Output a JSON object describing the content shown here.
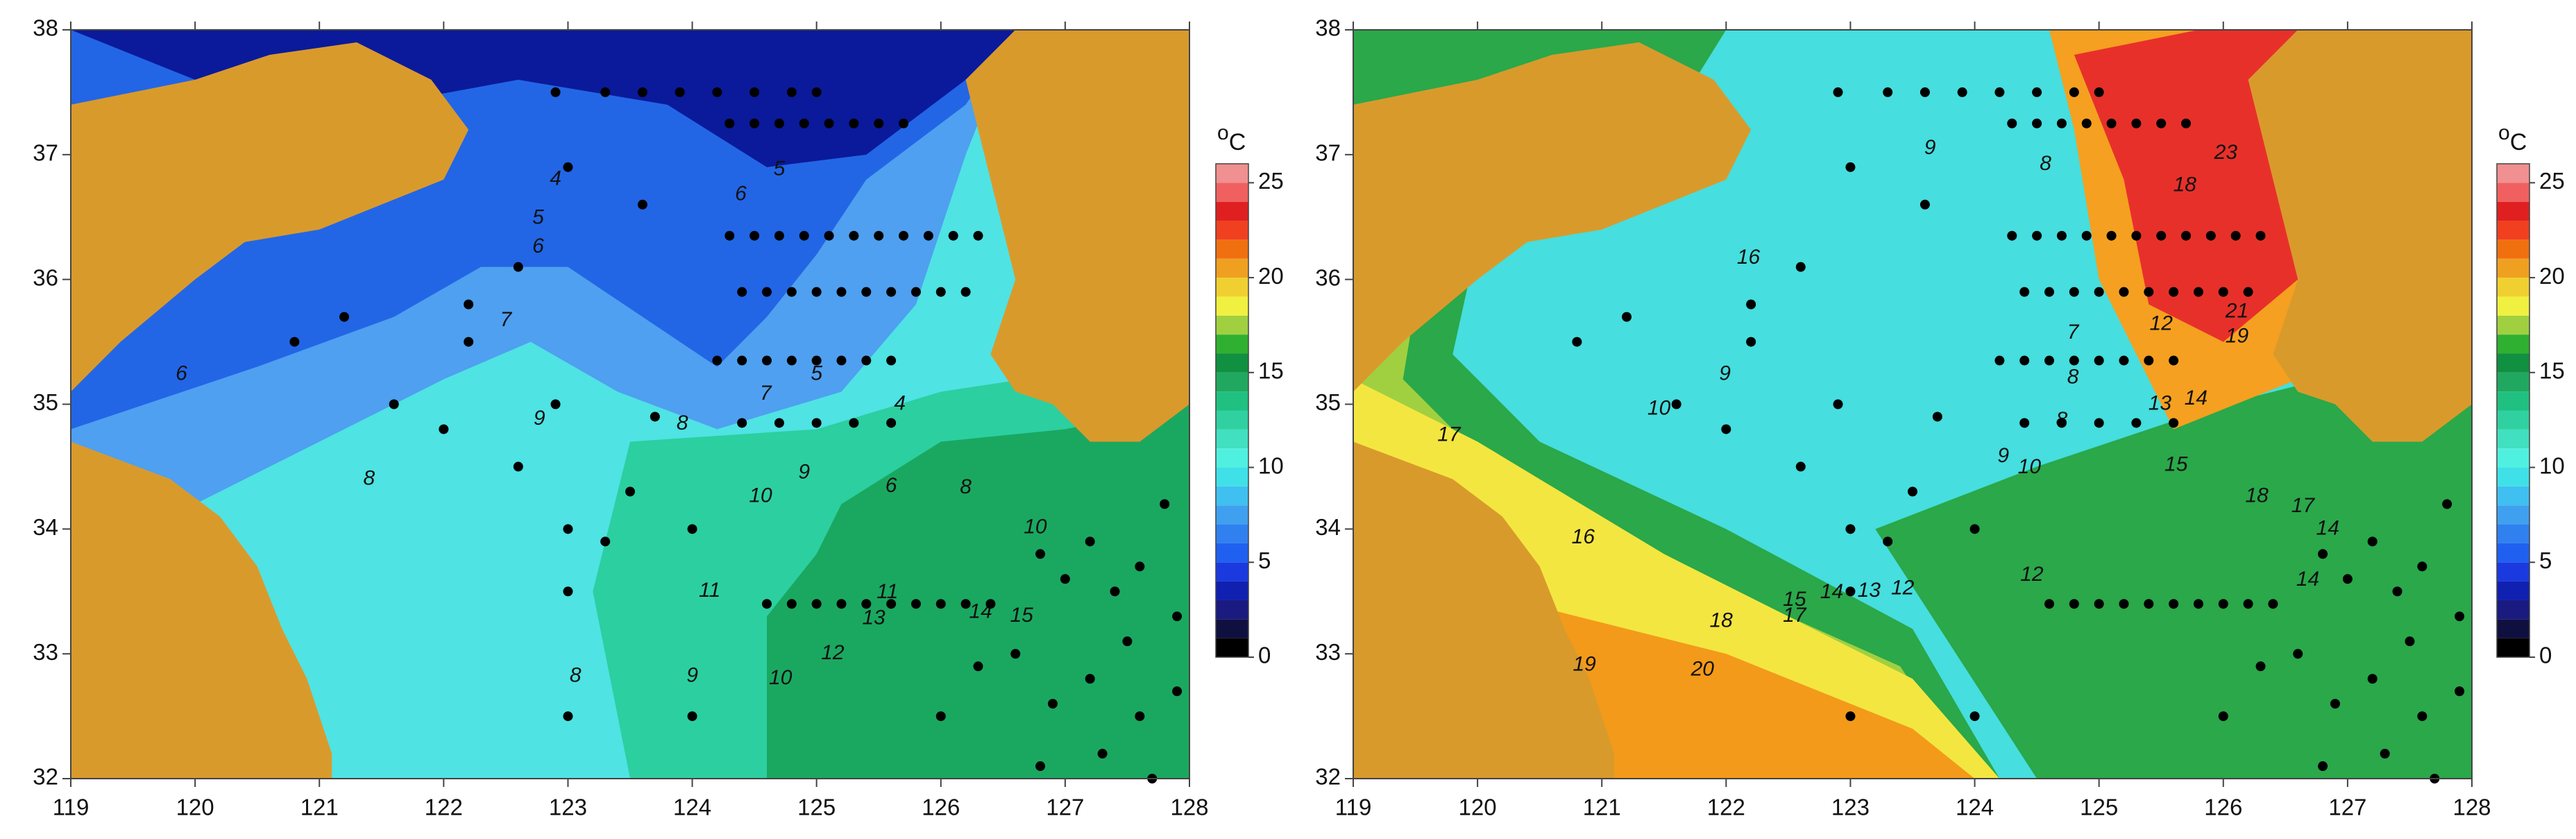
{
  "chart_data": [
    {
      "type": "contour",
      "xlim": [
        119,
        128
      ],
      "ylim": [
        32,
        38
      ],
      "xticks": [
        119,
        120,
        121,
        122,
        123,
        124,
        125,
        126,
        127,
        128
      ],
      "yticks": [
        32,
        33,
        34,
        35,
        36,
        37,
        38
      ],
      "colorbar": {
        "lim": [
          0,
          26
        ],
        "ticks": [
          0,
          5,
          10,
          15,
          20,
          25
        ],
        "unit_sup": "o",
        "unit": "C",
        "colormap": [
          "#000000",
          "#101040",
          "#1a1a80",
          "#1020b0",
          "#1a3ae0",
          "#2060f0",
          "#3080f0",
          "#40a0f0",
          "#40c0f0",
          "#40e0e8",
          "#50f0e0",
          "#40e0c0",
          "#30d0a0",
          "#20c080",
          "#20a860",
          "#109040",
          "#30b030",
          "#a0d040",
          "#f0f040",
          "#f0d030",
          "#f0a020",
          "#f07010",
          "#f04020",
          "#e02020",
          "#f06060",
          "#f09090"
        ]
      },
      "contour_labels": [
        {
          "value": 6,
          "lon": 119.89,
          "lat": 35.24
        },
        {
          "value": 8,
          "lon": 121.4,
          "lat": 34.4
        },
        {
          "value": 7,
          "lon": 122.5,
          "lat": 35.67
        },
        {
          "value": 6,
          "lon": 122.76,
          "lat": 36.26
        },
        {
          "value": 5,
          "lon": 122.76,
          "lat": 36.49
        },
        {
          "value": 4,
          "lon": 122.9,
          "lat": 36.8
        },
        {
          "value": 9,
          "lon": 122.77,
          "lat": 34.88
        },
        {
          "value": 8,
          "lon": 123.06,
          "lat": 32.82
        },
        {
          "value": 8,
          "lon": 123.92,
          "lat": 34.84
        },
        {
          "value": 7,
          "lon": 124.59,
          "lat": 35.08
        },
        {
          "value": 9,
          "lon": 124.0,
          "lat": 32.82
        },
        {
          "value": 10,
          "lon": 124.71,
          "lat": 32.8
        },
        {
          "value": 10,
          "lon": 124.55,
          "lat": 34.26
        },
        {
          "value": 11,
          "lon": 124.14,
          "lat": 33.5
        },
        {
          "value": 9,
          "lon": 124.9,
          "lat": 34.45
        },
        {
          "value": 6,
          "lon": 124.39,
          "lat": 36.68
        },
        {
          "value": 5,
          "lon": 124.7,
          "lat": 36.88
        },
        {
          "value": 5,
          "lon": 125.0,
          "lat": 35.24
        },
        {
          "value": 4,
          "lon": 125.67,
          "lat": 35.0
        },
        {
          "value": 6,
          "lon": 125.6,
          "lat": 34.34
        },
        {
          "value": 8,
          "lon": 126.2,
          "lat": 34.33
        },
        {
          "value": 10,
          "lon": 126.76,
          "lat": 34.01
        },
        {
          "value": 11,
          "lon": 125.57,
          "lat": 33.49
        },
        {
          "value": 13,
          "lon": 125.46,
          "lat": 33.28
        },
        {
          "value": 12,
          "lon": 125.13,
          "lat": 33.0
        },
        {
          "value": 14,
          "lon": 126.32,
          "lat": 33.33
        },
        {
          "value": 15,
          "lon": 126.65,
          "lat": 33.3
        }
      ]
    },
    {
      "type": "contour",
      "xlim": [
        119,
        128
      ],
      "ylim": [
        32,
        38
      ],
      "xticks": [
        119,
        120,
        121,
        122,
        123,
        124,
        125,
        126,
        127,
        128
      ],
      "yticks": [
        32,
        33,
        34,
        35,
        36,
        37,
        38
      ],
      "colorbar": {
        "lim": [
          0,
          26
        ],
        "ticks": [
          0,
          5,
          10,
          15,
          20,
          25
        ],
        "unit_sup": "o",
        "unit": "C",
        "colormap": [
          "#000000",
          "#101040",
          "#1a1a80",
          "#1020b0",
          "#1a3ae0",
          "#2060f0",
          "#3080f0",
          "#40a0f0",
          "#40c0f0",
          "#40e0e8",
          "#50f0e0",
          "#40e0c0",
          "#30d0a0",
          "#20c080",
          "#20a860",
          "#109040",
          "#30b030",
          "#a0d040",
          "#f0f040",
          "#f0d030",
          "#f0a020",
          "#f07010",
          "#f04020",
          "#e02020",
          "#f06060",
          "#f09090"
        ]
      },
      "contour_labels": [
        {
          "value": 17,
          "lon": 119.77,
          "lat": 34.75
        },
        {
          "value": 16,
          "lon": 120.85,
          "lat": 33.93
        },
        {
          "value": 15,
          "lon": 122.55,
          "lat": 33.43
        },
        {
          "value": 14,
          "lon": 122.85,
          "lat": 33.49
        },
        {
          "value": 13,
          "lon": 123.15,
          "lat": 33.5
        },
        {
          "value": 12,
          "lon": 123.42,
          "lat": 33.52
        },
        {
          "value": 17,
          "lon": 122.55,
          "lat": 33.3
        },
        {
          "value": 18,
          "lon": 121.96,
          "lat": 33.26
        },
        {
          "value": 19,
          "lon": 120.86,
          "lat": 32.91
        },
        {
          "value": 20,
          "lon": 121.81,
          "lat": 32.87
        },
        {
          "value": 10,
          "lon": 121.46,
          "lat": 34.96
        },
        {
          "value": 9,
          "lon": 121.99,
          "lat": 35.24
        },
        {
          "value": 16,
          "lon": 122.18,
          "lat": 36.17
        },
        {
          "value": 9,
          "lon": 124.23,
          "lat": 34.58
        },
        {
          "value": 10,
          "lon": 124.44,
          "lat": 34.49
        },
        {
          "value": 8,
          "lon": 124.7,
          "lat": 34.87
        },
        {
          "value": 8,
          "lon": 124.79,
          "lat": 35.21
        },
        {
          "value": 7,
          "lon": 124.79,
          "lat": 35.57
        },
        {
          "value": 8,
          "lon": 124.57,
          "lat": 36.92
        },
        {
          "value": 9,
          "lon": 123.64,
          "lat": 37.05
        },
        {
          "value": 12,
          "lon": 125.5,
          "lat": 35.64
        },
        {
          "value": 13,
          "lon": 125.49,
          "lat": 35.0
        },
        {
          "value": 14,
          "lon": 125.78,
          "lat": 35.04
        },
        {
          "value": 12,
          "lon": 124.46,
          "lat": 33.63
        },
        {
          "value": 18,
          "lon": 126.27,
          "lat": 34.26
        },
        {
          "value": 17,
          "lon": 126.64,
          "lat": 34.18
        },
        {
          "value": 14,
          "lon": 126.84,
          "lat": 34.0
        },
        {
          "value": 14,
          "lon": 126.68,
          "lat": 33.59
        },
        {
          "value": 23,
          "lon": 126.02,
          "lat": 37.01
        },
        {
          "value": 18,
          "lon": 125.69,
          "lat": 36.75
        },
        {
          "value": 21,
          "lon": 126.11,
          "lat": 35.74
        },
        {
          "value": 19,
          "lon": 126.11,
          "lat": 35.54
        },
        {
          "value": 15,
          "lon": 125.62,
          "lat": 34.51
        }
      ]
    }
  ],
  "stations": {
    "lon": [
      124.3,
      124.5,
      124.7,
      124.9,
      125.1,
      125.3,
      125.5,
      125.7,
      124.3,
      124.5,
      124.7,
      124.9,
      125.1,
      125.3,
      125.5,
      125.7,
      125.9,
      126.1,
      126.3,
      124.4,
      124.6,
      124.8,
      125.0,
      125.2,
      125.4,
      125.6,
      125.8,
      126.0,
      126.2,
      124.2,
      124.4,
      124.6,
      124.8,
      125.0,
      125.2,
      125.4,
      125.6,
      124.4,
      124.7,
      125.0,
      125.3,
      125.6,
      124.6,
      124.8,
      125.0,
      125.2,
      125.4,
      125.6,
      125.8,
      126.0,
      126.2,
      126.4,
      122.9,
      123.3,
      123.6,
      123.9,
      124.2,
      124.5,
      124.8,
      125.0,
      126.8,
      127.0,
      127.2,
      127.4,
      127.6,
      127.8,
      127.9,
      127.5,
      127.2,
      126.9,
      127.6,
      127.9,
      126.6,
      126.3,
      126.0,
      127.3,
      127.7,
      126.8,
      120.8,
      121.2,
      121.6,
      122.0,
      122.2,
      122.6,
      122.9,
      123.0,
      123.0,
      123.0,
      123.3,
      123.5,
      123.7,
      124.0,
      124.0,
      123.6,
      123.0,
      122.6,
      122.2
    ],
    "lat": [
      37.25,
      37.25,
      37.25,
      37.25,
      37.25,
      37.25,
      37.25,
      37.25,
      36.35,
      36.35,
      36.35,
      36.35,
      36.35,
      36.35,
      36.35,
      36.35,
      36.35,
      36.35,
      36.35,
      35.9,
      35.9,
      35.9,
      35.9,
      35.9,
      35.9,
      35.9,
      35.9,
      35.9,
      35.9,
      35.35,
      35.35,
      35.35,
      35.35,
      35.35,
      35.35,
      35.35,
      35.35,
      34.85,
      34.85,
      34.85,
      34.85,
      34.85,
      33.4,
      33.4,
      33.4,
      33.4,
      33.4,
      33.4,
      33.4,
      33.4,
      33.4,
      33.4,
      37.5,
      37.5,
      37.5,
      37.5,
      37.5,
      37.5,
      37.5,
      37.5,
      33.8,
      33.6,
      33.9,
      33.5,
      33.7,
      34.2,
      33.3,
      33.1,
      32.8,
      32.6,
      32.5,
      32.7,
      33.0,
      32.9,
      32.5,
      32.2,
      32.0,
      32.1,
      35.5,
      35.7,
      35.0,
      34.8,
      35.5,
      34.5,
      35.0,
      34.0,
      33.5,
      32.5,
      33.9,
      34.3,
      34.9,
      34.0,
      32.5,
      36.6,
      36.9,
      36.1,
      35.8
    ]
  }
}
